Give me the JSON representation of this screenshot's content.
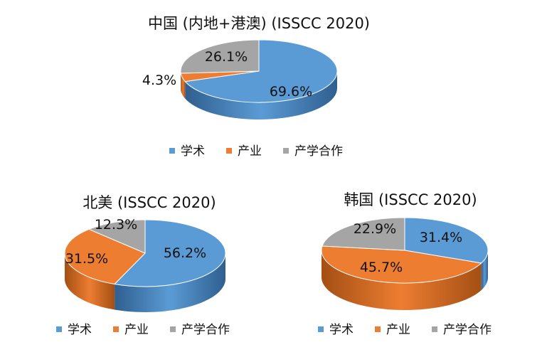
{
  "colors": {
    "academia": "#5b9bd5",
    "industry": "#ed7d31",
    "collab": "#a5a5a5",
    "academia_side": "#2f5f8f",
    "industry_side": "#a44f14",
    "collab_side": "#6e6e6e"
  },
  "chart_data": [
    {
      "type": "pie",
      "title": "中国 (内地+港澳)  (ISSCC 2020)",
      "categories": [
        "学术",
        "产业",
        "产学合作"
      ],
      "values": [
        69.6,
        4.3,
        26.1
      ],
      "labels": [
        "69.6%",
        "4.3%",
        "26.1%"
      ],
      "legend": [
        "学术",
        "产业",
        "产学合作"
      ],
      "legend_position": "bottom",
      "style": "3d"
    },
    {
      "type": "pie",
      "title": "北美 (ISSCC 2020)",
      "categories": [
        "学术",
        "产业",
        "产学合作"
      ],
      "values": [
        56.2,
        31.5,
        12.3
      ],
      "labels": [
        "56.2%",
        "31.5%",
        "12.3%"
      ],
      "legend": [
        "学术",
        "产业",
        "产学合作"
      ],
      "legend_position": "bottom",
      "style": "3d"
    },
    {
      "type": "pie",
      "title": "韩国 (ISSCC 2020)",
      "categories": [
        "学术",
        "产业",
        "产学合作"
      ],
      "values": [
        31.4,
        45.7,
        22.9
      ],
      "labels": [
        "31.4%",
        "45.7%",
        "22.9%"
      ],
      "legend": [
        "学术",
        "产业",
        "产学合作"
      ],
      "legend_position": "bottom",
      "style": "3d"
    }
  ]
}
